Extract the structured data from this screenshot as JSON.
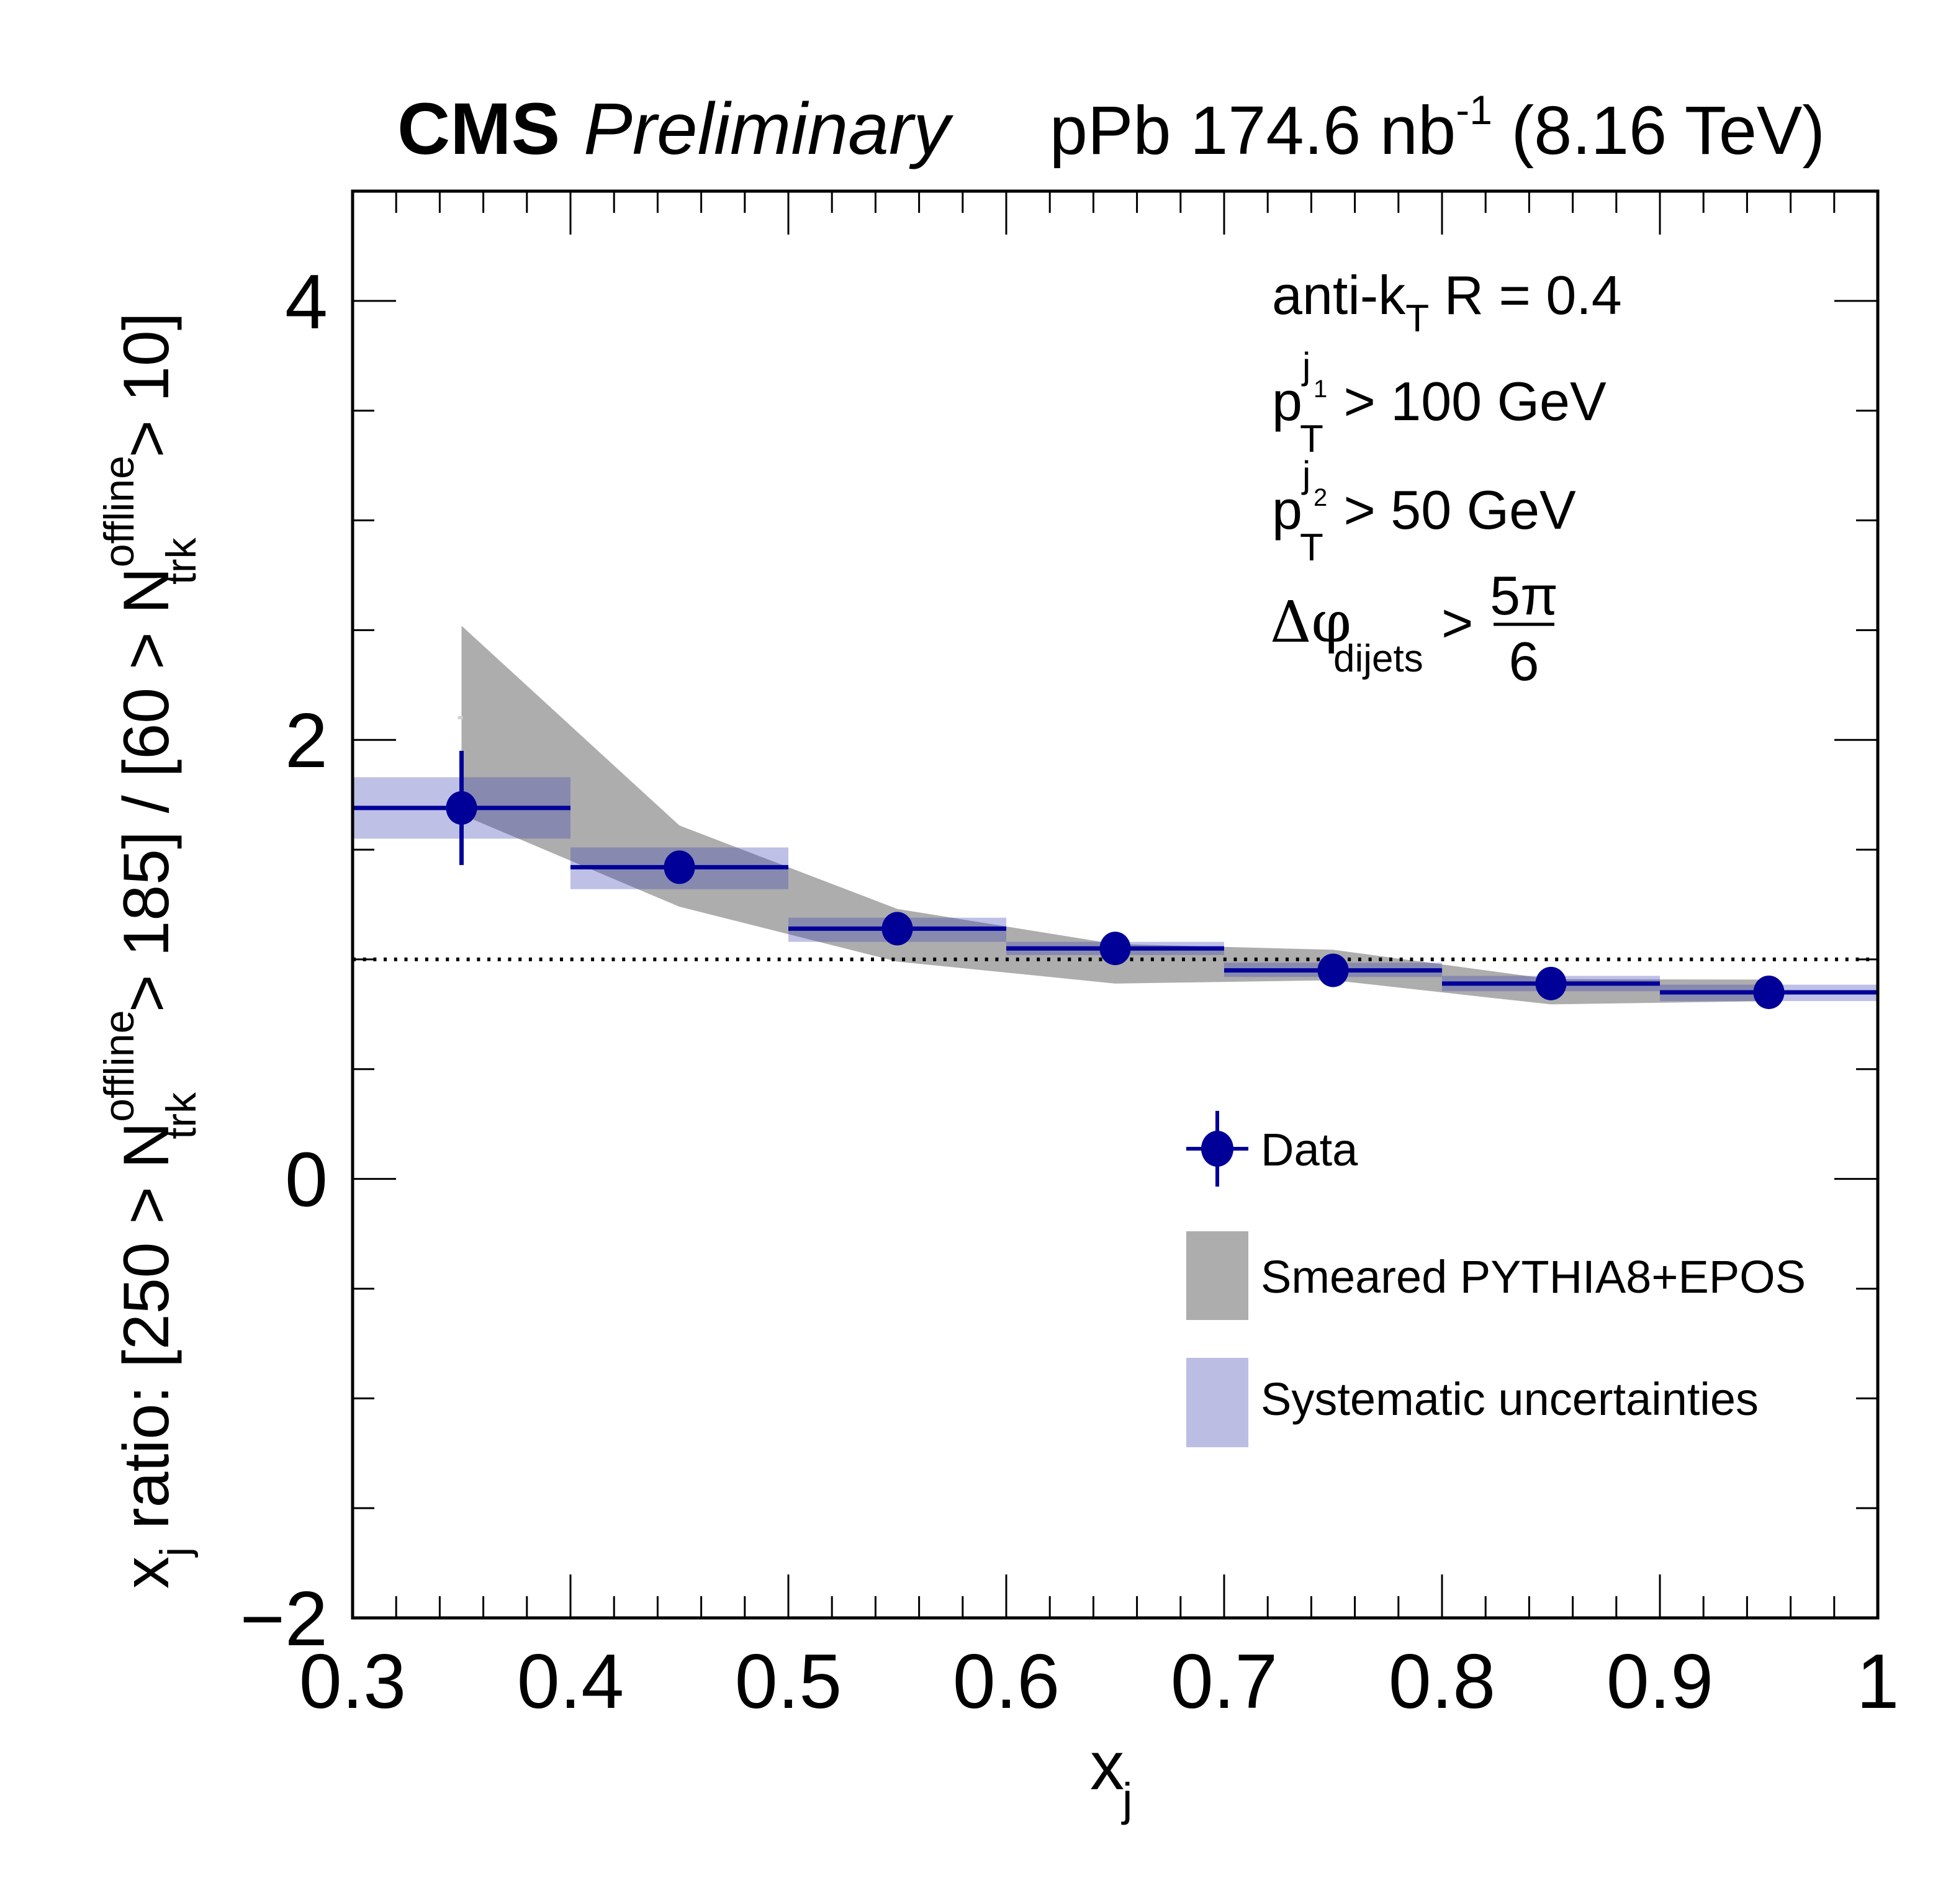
{
  "chart_data": {
    "type": "scatter",
    "experiment_label": "CMS",
    "status_label": "Preliminary",
    "lumi_label": {
      "system": "pPb",
      "luminosity": "174.6",
      "unit": "nb",
      "unit_exponent": "-1",
      "energy": "(8.16 TeV)"
    },
    "xlabel": {
      "main": "x",
      "sub": "j"
    },
    "ylabel": {
      "prefix_main": "x",
      "prefix_sub": "j",
      "part1": " ratio: [250 > N",
      "sup1": "offline",
      "sub1": "trk",
      "part2": " > 185] / [60 > N",
      "sup2": "offline",
      "sub2": "trk",
      "part3": " > 10]"
    },
    "xlim": [
      0.3,
      1.0
    ],
    "ylim": [
      -2,
      4.5
    ],
    "x_ticks": [
      0.3,
      0.4,
      0.5,
      0.6,
      0.7,
      0.8,
      0.9,
      1.0
    ],
    "x_tick_labels": [
      "0.3",
      "0.4",
      "0.5",
      "0.6",
      "0.7",
      "0.8",
      "0.9",
      "1"
    ],
    "x_minor_step": 0.02,
    "y_ticks": [
      -2,
      0,
      2,
      4
    ],
    "y_tick_labels": [
      "−2",
      "0",
      "2",
      "4"
    ],
    "y_minor_step": 0.5,
    "reference_line": {
      "y": 1.0,
      "style": "dotted"
    },
    "grid": false,
    "annotations": {
      "algo": {
        "main": "anti-k",
        "sub": "T",
        "rest": " R = 0.4"
      },
      "pt1": {
        "main": "p",
        "sub": "T",
        "sup": "j",
        "supsub": "1",
        "rest": " > 100 GeV"
      },
      "pt2": {
        "main": "p",
        "sub": "T",
        "sup": "j",
        "supsub": "2",
        "rest": " > 50 GeV"
      },
      "dphi": {
        "main": "Δφ",
        "sub": "dijets",
        "op": ">",
        "num": "5π",
        "den": "6"
      }
    },
    "legend": {
      "placement": "lower-right",
      "entries": [
        {
          "label": "Data",
          "kind": "marker"
        },
        {
          "label": "Smeared PYTHIA8+EPOS",
          "kind": "fill-gray"
        },
        {
          "label": "Systematic uncertainties",
          "kind": "fill-blue"
        }
      ]
    },
    "colors": {
      "data": "#000099",
      "model_band": "#adadad",
      "systematic": "#bcbde3",
      "overlap": "#878899"
    },
    "series": [
      {
        "name": "Data",
        "bin_edges": [
          0.3,
          0.4,
          0.5,
          0.6,
          0.7,
          0.8,
          0.9,
          1.0
        ],
        "x": [
          0.35,
          0.45,
          0.55,
          0.65,
          0.75,
          0.85,
          0.95
        ],
        "y": [
          1.69,
          1.42,
          1.14,
          1.05,
          0.95,
          0.89,
          0.85
        ],
        "stat_err": [
          0.26,
          0.04,
          0.02,
          0.02,
          0.02,
          0.02,
          0.02
        ],
        "syst_low": [
          1.55,
          1.32,
          1.08,
          1.02,
          0.92,
          0.855,
          0.81
        ],
        "syst_high": [
          1.83,
          1.51,
          1.19,
          1.08,
          0.985,
          0.925,
          0.885
        ]
      },
      {
        "name": "Smeared PYTHIA8+EPOS",
        "x": [
          0.35,
          0.45,
          0.55,
          0.65,
          0.75,
          0.85,
          0.95
        ],
        "low": [
          1.66,
          1.24,
          0.99,
          0.89,
          0.905,
          0.795,
          0.81
        ],
        "high": [
          2.52,
          1.61,
          1.23,
          1.07,
          1.044,
          0.91,
          0.908
        ],
        "marker_y": 2.1
      }
    ]
  }
}
